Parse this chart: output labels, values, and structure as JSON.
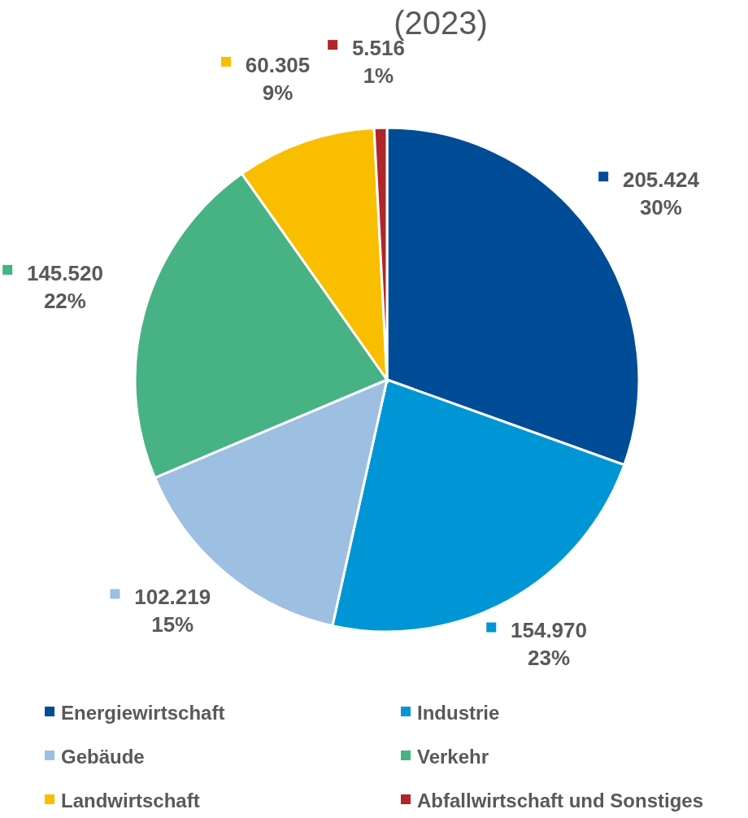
{
  "chart_data": {
    "type": "pie",
    "title": "(2023)",
    "categories": [
      "Energiewirtschaft",
      "Industrie",
      "Gebäude",
      "Verkehr",
      "Landwirtschaft",
      "Abfallwirtschaft und Sonstiges"
    ],
    "values": [
      205.424,
      154.97,
      102.219,
      145.52,
      60.305,
      5.516
    ],
    "colors": [
      "#004c97",
      "#0096d6",
      "#9dbfe1",
      "#47b283",
      "#f9be00",
      "#b0242c"
    ],
    "value_labels": [
      "205.424\n30%",
      "154.970\n23%",
      "102.219\n15%",
      "145.520\n22%",
      "60.305\n9%",
      "5.516\n1%"
    ],
    "legend": "bottom"
  }
}
